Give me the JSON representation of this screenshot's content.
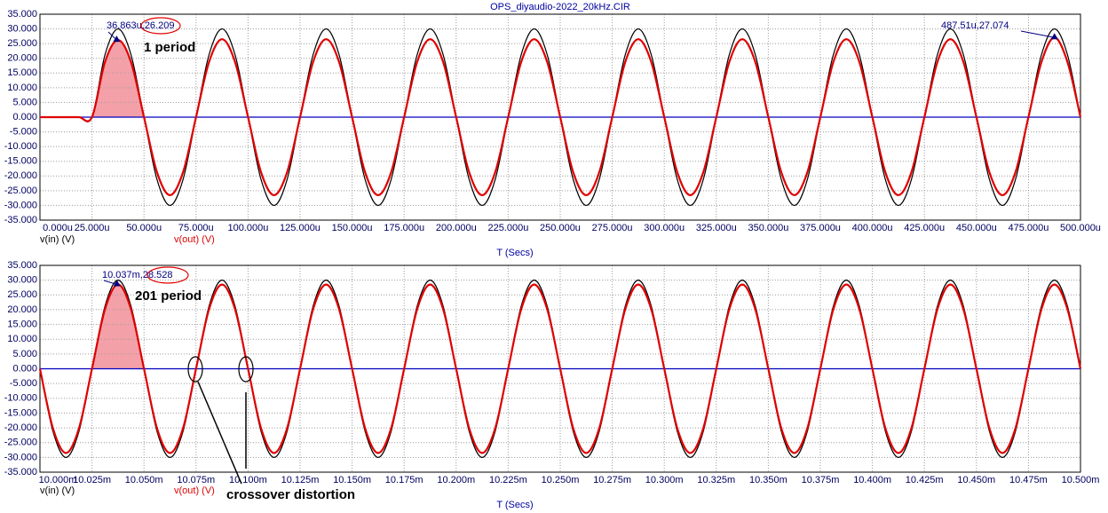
{
  "chart_data": [
    {
      "type": "line",
      "title": "OPS_diyaudio-2022_20kHz.CIR",
      "xlabel": "T (Secs)",
      "grid": true,
      "x": [
        0,
        6.25,
        12.5,
        18.75,
        25,
        31.25,
        37.5,
        43.75,
        50,
        56.25,
        62.5,
        68.75,
        75,
        81.25,
        87.5,
        93.75,
        100,
        106.25,
        112.5,
        118.75,
        125,
        131.25,
        137.5,
        143.75,
        150,
        156.25,
        162.5,
        168.75,
        175,
        181.25,
        187.5,
        193.75,
        200,
        206.25,
        212.5,
        218.75,
        225,
        231.25,
        237.5,
        243.75,
        250,
        256.25,
        262.5,
        268.75,
        275,
        281.25,
        287.5,
        293.75,
        300,
        306.25,
        312.5,
        318.75,
        325,
        331.25,
        337.5,
        343.75,
        350,
        356.25,
        362.5,
        368.75,
        375,
        381.25,
        387.5,
        393.75,
        400,
        406.25,
        412.5,
        418.75,
        425,
        431.25,
        437.5,
        443.75,
        450,
        456.25,
        462.5,
        468.75,
        475,
        481.25,
        487.5,
        493.75,
        500
      ],
      "series": [
        {
          "name": "v(in) (V)",
          "color": "#000000",
          "values": [
            0,
            0,
            0,
            0,
            0,
            21.21,
            30,
            21.21,
            0,
            -21.21,
            -30,
            -21.21,
            0,
            21.21,
            30,
            21.21,
            0,
            -21.21,
            -30,
            -21.21,
            0,
            21.21,
            30,
            21.21,
            0,
            -21.21,
            -30,
            -21.21,
            0,
            21.21,
            30,
            21.21,
            0,
            -21.21,
            -30,
            -21.21,
            0,
            21.21,
            30,
            21.21,
            0,
            -21.21,
            -30,
            -21.21,
            0,
            21.21,
            30,
            21.21,
            0,
            -21.21,
            -30,
            -21.21,
            0,
            21.21,
            30,
            21.21,
            0,
            -21.21,
            -30,
            -21.21,
            0,
            21.21,
            30,
            21.21,
            0,
            -21.21,
            -30,
            -21.21,
            0,
            21.21,
            30,
            21.21,
            0,
            -21.21,
            -30,
            -21.21,
            0,
            21.21,
            30,
            21.21,
            0
          ]
        },
        {
          "name": "v(out) (V)",
          "color": "#e00000",
          "values": [
            0,
            0,
            0,
            0,
            0,
            18.74,
            26.21,
            18.74,
            0,
            -18.74,
            -26.5,
            -18.74,
            0,
            18.74,
            26.5,
            18.74,
            0,
            -18.74,
            -26.5,
            -18.74,
            0,
            18.74,
            26.5,
            18.74,
            0,
            -18.74,
            -26.5,
            -18.74,
            0,
            18.74,
            26.5,
            18.74,
            0,
            -18.74,
            -26.5,
            -18.74,
            0,
            18.74,
            26.5,
            18.74,
            0,
            -18.74,
            -26.5,
            -18.74,
            0,
            18.74,
            26.5,
            18.74,
            0,
            -18.74,
            -26.5,
            -18.74,
            0,
            18.74,
            26.5,
            18.74,
            0,
            -18.74,
            -26.5,
            -18.74,
            0,
            18.74,
            26.5,
            18.74,
            0,
            -18.74,
            -26.5,
            -18.74,
            0,
            18.74,
            26.5,
            18.74,
            0,
            -18.74,
            -26.5,
            -18.74,
            0,
            18.74,
            27.07,
            18.74,
            0
          ]
        }
      ],
      "xlim": [
        0,
        500
      ],
      "xticks": [
        {
          "value": 0,
          "label": "0.000u"
        },
        {
          "value": 25,
          "label": "25.000u"
        },
        {
          "value": 50,
          "label": "50.000u"
        },
        {
          "value": 75,
          "label": "75.000u"
        },
        {
          "value": 100,
          "label": "100.000u"
        },
        {
          "value": 125,
          "label": "125.000u"
        },
        {
          "value": 150,
          "label": "150.000u"
        },
        {
          "value": 175,
          "label": "175.000u"
        },
        {
          "value": 200,
          "label": "200.000u"
        },
        {
          "value": 225,
          "label": "225.000u"
        },
        {
          "value": 250,
          "label": "250.000u"
        },
        {
          "value": 275,
          "label": "275.000u"
        },
        {
          "value": 300,
          "label": "300.000u"
        },
        {
          "value": 325,
          "label": "325.000u"
        },
        {
          "value": 350,
          "label": "350.000u"
        },
        {
          "value": 375,
          "label": "375.000u"
        },
        {
          "value": 400,
          "label": "400.000u"
        },
        {
          "value": 425,
          "label": "425.000u"
        },
        {
          "value": 450,
          "label": "450.000u"
        },
        {
          "value": 475,
          "label": "475.000u"
        },
        {
          "value": 500,
          "label": "500.000u"
        }
      ],
      "ylim": [
        -35,
        35
      ],
      "yticks": [
        {
          "value": 35,
          "label": "35.000"
        },
        {
          "value": 30,
          "label": "30.000"
        },
        {
          "value": 25,
          "label": "25.000"
        },
        {
          "value": 20,
          "label": "20.000"
        },
        {
          "value": 15,
          "label": "15.000"
        },
        {
          "value": 10,
          "label": "10.000"
        },
        {
          "value": 5,
          "label": "5.000"
        },
        {
          "value": 0,
          "label": "0.000"
        },
        {
          "value": -5,
          "label": "-5.000"
        },
        {
          "value": -10,
          "label": "-10.000"
        },
        {
          "value": -15,
          "label": "-15.000"
        },
        {
          "value": -20,
          "label": "-20.000"
        },
        {
          "value": -25,
          "label": "-25.000"
        },
        {
          "value": -30,
          "label": "-30.000"
        },
        {
          "value": -35,
          "label": "-35.000"
        }
      ],
      "annotations": [
        {
          "text": "36.863u,26.209",
          "x": 36.863,
          "y": 26.209,
          "highlight": true
        },
        {
          "text": "487.51u,27.074",
          "x": 487.51,
          "y": 27.074
        },
        {
          "text": "1 period"
        }
      ]
    },
    {
      "type": "line",
      "xlabel": "T (Secs)",
      "grid": true,
      "x": [
        10,
        10.00625,
        10.0125,
        10.01875,
        10.025,
        10.03125,
        10.0375,
        10.04375,
        10.05,
        10.05625,
        10.0625,
        10.06875,
        10.075,
        10.08125,
        10.0875,
        10.09375,
        10.1,
        10.10625,
        10.1125,
        10.11875,
        10.125,
        10.13125,
        10.1375,
        10.14375,
        10.15,
        10.15625,
        10.1625,
        10.16875,
        10.175,
        10.18125,
        10.1875,
        10.19375,
        10.2,
        10.20625,
        10.2125,
        10.21875,
        10.225,
        10.23125,
        10.2375,
        10.24375,
        10.25,
        10.25625,
        10.2625,
        10.26875,
        10.275,
        10.28125,
        10.2875,
        10.29375,
        10.3,
        10.30625,
        10.3125,
        10.31875,
        10.325,
        10.33125,
        10.3375,
        10.34375,
        10.35,
        10.35625,
        10.3625,
        10.36875,
        10.375,
        10.38125,
        10.3875,
        10.39375,
        10.4,
        10.40625,
        10.4125,
        10.41875,
        10.425,
        10.43125,
        10.4375,
        10.44375,
        10.45,
        10.45625,
        10.4625,
        10.46875,
        10.475,
        10.48125,
        10.4875,
        10.49375,
        10.5
      ],
      "series": [
        {
          "name": "v(in) (V)",
          "color": "#000000",
          "values": [
            0,
            -21.21,
            -30,
            -21.21,
            0,
            21.21,
            30,
            21.21,
            0,
            -21.21,
            -30,
            -21.21,
            0,
            21.21,
            30,
            21.21,
            0,
            -21.21,
            -30,
            -21.21,
            0,
            21.21,
            30,
            21.21,
            0,
            -21.21,
            -30,
            -21.21,
            0,
            21.21,
            30,
            21.21,
            0,
            -21.21,
            -30,
            -21.21,
            0,
            21.21,
            30,
            21.21,
            0,
            -21.21,
            -30,
            -21.21,
            0,
            21.21,
            30,
            21.21,
            0,
            -21.21,
            -30,
            -21.21,
            0,
            21.21,
            30,
            21.21,
            0,
            -21.21,
            -30,
            -21.21,
            0,
            21.21,
            30,
            21.21,
            0,
            -21.21,
            -30,
            -21.21,
            0,
            21.21,
            30,
            21.21,
            0,
            -21.21,
            -30,
            -21.21,
            0,
            21.21,
            30,
            21.21,
            0
          ]
        },
        {
          "name": "v(out) (V)",
          "color": "#e00000",
          "values": [
            0,
            -20.15,
            -28.5,
            -20.15,
            0,
            20.15,
            28.53,
            20.15,
            0,
            -20.15,
            -28.5,
            -20.15,
            0,
            20.15,
            28.5,
            20.15,
            0,
            -20.15,
            -28.5,
            -20.15,
            0,
            20.15,
            28.5,
            20.15,
            0,
            -20.15,
            -28.5,
            -20.15,
            0,
            20.15,
            28.5,
            20.15,
            0,
            -20.15,
            -28.5,
            -20.15,
            0,
            20.15,
            28.5,
            20.15,
            0,
            -20.15,
            -28.5,
            -20.15,
            0,
            20.15,
            28.5,
            20.15,
            0,
            -20.15,
            -28.5,
            -20.15,
            0,
            20.15,
            28.5,
            20.15,
            0,
            -20.15,
            -28.5,
            -20.15,
            0,
            20.15,
            28.5,
            20.15,
            0,
            -20.15,
            -28.5,
            -20.15,
            0,
            20.15,
            28.5,
            20.15,
            0,
            -20.15,
            -28.5,
            -20.15,
            0,
            20.15,
            28.5,
            20.15,
            0
          ]
        }
      ],
      "xlim": [
        10,
        10.5
      ],
      "xticks": [
        {
          "value": 10,
          "label": "10.000m"
        },
        {
          "value": 10.025,
          "label": "10.025m"
        },
        {
          "value": 10.05,
          "label": "10.050m"
        },
        {
          "value": 10.075,
          "label": "10.075m"
        },
        {
          "value": 10.1,
          "label": "10.100m"
        },
        {
          "value": 10.125,
          "label": "10.125m"
        },
        {
          "value": 10.15,
          "label": "10.150m"
        },
        {
          "value": 10.175,
          "label": "10.175m"
        },
        {
          "value": 10.2,
          "label": "10.200m"
        },
        {
          "value": 10.225,
          "label": "10.225m"
        },
        {
          "value": 10.25,
          "label": "10.250m"
        },
        {
          "value": 10.275,
          "label": "10.275m"
        },
        {
          "value": 10.3,
          "label": "10.300m"
        },
        {
          "value": 10.325,
          "label": "10.325m"
        },
        {
          "value": 10.35,
          "label": "10.350m"
        },
        {
          "value": 10.375,
          "label": "10.375m"
        },
        {
          "value": 10.4,
          "label": "10.400m"
        },
        {
          "value": 10.425,
          "label": "10.425m"
        },
        {
          "value": 10.45,
          "label": "10.450m"
        },
        {
          "value": 10.475,
          "label": "10.475m"
        },
        {
          "value": 10.5,
          "label": "10.500m"
        }
      ],
      "ylim": [
        -35,
        35
      ],
      "yticks": [
        {
          "value": 35,
          "label": "35.000"
        },
        {
          "value": 30,
          "label": "30.000"
        },
        {
          "value": 25,
          "label": "25.000"
        },
        {
          "value": 20,
          "label": "20.000"
        },
        {
          "value": 15,
          "label": "15.000"
        },
        {
          "value": 10,
          "label": "10.000"
        },
        {
          "value": 5,
          "label": "5.000"
        },
        {
          "value": 0,
          "label": "0.000"
        },
        {
          "value": -5,
          "label": "-5.000"
        },
        {
          "value": -10,
          "label": "-10.000"
        },
        {
          "value": -15,
          "label": "-15.000"
        },
        {
          "value": -20,
          "label": "-20.000"
        },
        {
          "value": -25,
          "label": "-25.000"
        },
        {
          "value": -30,
          "label": "-30.000"
        },
        {
          "value": -35,
          "label": "-35.000"
        }
      ],
      "annotations": [
        {
          "text": "10.037m,28.528",
          "x": 10.037,
          "y": 28.528,
          "highlight": true
        },
        {
          "text": "201 period"
        },
        {
          "text": "crossover distortion"
        }
      ]
    }
  ]
}
